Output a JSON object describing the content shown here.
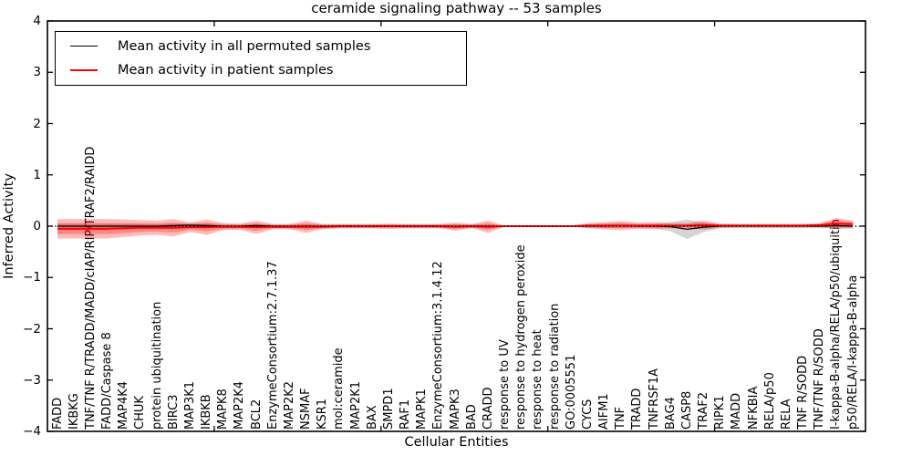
{
  "title": "ceramide signaling pathway -- 53 samples",
  "axes": {
    "x_label": "Cellular Entities",
    "y_label": "Inferred Activity",
    "y_ticks": [
      {
        "value": 4,
        "label": "4"
      },
      {
        "value": 3,
        "label": "3"
      },
      {
        "value": 2,
        "label": "2"
      },
      {
        "value": 1,
        "label": "1"
      },
      {
        "value": 0,
        "label": "0"
      },
      {
        "value": -1,
        "label": "−1"
      },
      {
        "value": -2,
        "label": "−2"
      },
      {
        "value": -3,
        "label": "−3"
      },
      {
        "value": -4,
        "label": "−4"
      }
    ],
    "x_tick_values": [
      10,
      20,
      30,
      40
    ]
  },
  "legend": {
    "entries": [
      {
        "label": "Mean activity in all permuted samples",
        "color": "#000000",
        "line_width": 1.5
      },
      {
        "label": "Mean activity in patient samples",
        "color": "#ff0000",
        "line_width": 2
      }
    ]
  },
  "chart_data": {
    "type": "line",
    "title": "ceramide signaling pathway -- 53 samples",
    "xlabel": "Cellular Entities",
    "ylabel": "Inferred Activity",
    "ylim": [
      -4,
      4
    ],
    "n_points": 49,
    "legend_position": "upper left",
    "grid": false,
    "zero_line_style": "dotted",
    "categories": [
      "FADD",
      "IKBKG",
      "TNF/TNF R/TRADD/MADD/cIAP/RIP/TRAF2/RAIDD",
      "FADD/Caspase 8",
      "MAP4K4",
      "CHUK",
      "protein ubiquitination",
      "BIRC3",
      "MAP3K1",
      "IKBKB",
      "MAPK8",
      "MAP2K4",
      "BCL2",
      "EnzymeConsortium:2.7.1.37",
      "MAP2K2",
      "NSMAF",
      "KSR1",
      "mol:ceramide",
      "MAP2K1",
      "BAX",
      "SMPD1",
      "RAF1",
      "MAPK1",
      "EnzymeConsortium:3.1.4.12",
      "MAPK3",
      "BAD",
      "CRADD",
      "response to UV",
      "response to hydrogen peroxide",
      "response to heat",
      "response to radiation",
      "GO:0005551",
      "CYCS",
      "AIFM1",
      "TNF",
      "TRADD",
      "TNFRSF1A",
      "BAG4",
      "CASP8",
      "TRAF2",
      "RIPK1",
      "MADD",
      "NFKBIA",
      "RELA/p50",
      "RELA",
      "TNF R/SODD",
      "TNF/TNF R/SODD",
      "I-kappa-B-alpha/RELA/p50/ubiquitin",
      "p50/RELA/I-kappa-B-alpha"
    ],
    "series": [
      {
        "name": "Mean activity in all permuted samples",
        "color": "#000000",
        "band_color": "#808080",
        "band_opacity": 0.33,
        "line_width": 1.3,
        "values": [
          0,
          0,
          0,
          0,
          0,
          0,
          0,
          0.01,
          0.02,
          0.01,
          0,
          0,
          0.01,
          0,
          0,
          0,
          0,
          0,
          0,
          0,
          0,
          0,
          0,
          0,
          0,
          0,
          0,
          0,
          0,
          0,
          0,
          0,
          0,
          0,
          0.01,
          0,
          0,
          -0.01,
          -0.06,
          -0.02,
          0,
          0,
          0,
          0,
          0,
          0,
          0,
          0.01,
          0
        ],
        "spread": [
          0.05,
          0.05,
          0.05,
          0.05,
          0.05,
          0.045,
          0.045,
          0.045,
          0.045,
          0.045,
          0.04,
          0.04,
          0.04,
          0.04,
          0.04,
          0.04,
          0.04,
          0.04,
          0.04,
          0.04,
          0.04,
          0.04,
          0.04,
          0.04,
          0.04,
          0.04,
          0.04,
          0.01,
          0.008,
          0.008,
          0.008,
          0.01,
          0.04,
          0.04,
          0.04,
          0.04,
          0.04,
          0.09,
          0.19,
          0.09,
          0.04,
          0.04,
          0.04,
          0.04,
          0.04,
          0.04,
          0.04,
          0.05,
          0.05
        ]
      },
      {
        "name": "Mean activity in patient samples",
        "color": "#ff0000",
        "band_color": "#ff0000",
        "band_opacity": 0.27,
        "inner_band_scale": 0.55,
        "line_width": 2,
        "values": [
          -0.05,
          -0.05,
          -0.05,
          -0.05,
          -0.04,
          -0.03,
          -0.03,
          -0.03,
          -0.02,
          -0.02,
          -0.01,
          -0.01,
          -0.02,
          -0.01,
          -0.01,
          -0.01,
          -0.01,
          0,
          0,
          0,
          0,
          0,
          0,
          0,
          -0.01,
          0,
          -0.01,
          0,
          0,
          0,
          0,
          0,
          0.01,
          0.01,
          0.01,
          0.01,
          0.01,
          0.01,
          0.01,
          0.02,
          0.01,
          0.01,
          0.01,
          0.01,
          0.01,
          0.01,
          0.02,
          0.05,
          0.04
        ],
        "spread": [
          0.19,
          0.19,
          0.19,
          0.19,
          0.17,
          0.15,
          0.14,
          0.17,
          0.09,
          0.15,
          0.07,
          0.06,
          0.13,
          0.05,
          0.05,
          0.12,
          0.05,
          0.04,
          0.04,
          0.04,
          0.05,
          0.04,
          0.04,
          0.04,
          0.08,
          0.04,
          0.12,
          0.006,
          0.005,
          0.005,
          0.005,
          0.006,
          0.05,
          0.07,
          0.09,
          0.06,
          0.07,
          0.05,
          0.05,
          0.09,
          0.04,
          0.035,
          0.035,
          0.035,
          0.035,
          0.035,
          0.04,
          0.11,
          0.07
        ]
      }
    ]
  }
}
